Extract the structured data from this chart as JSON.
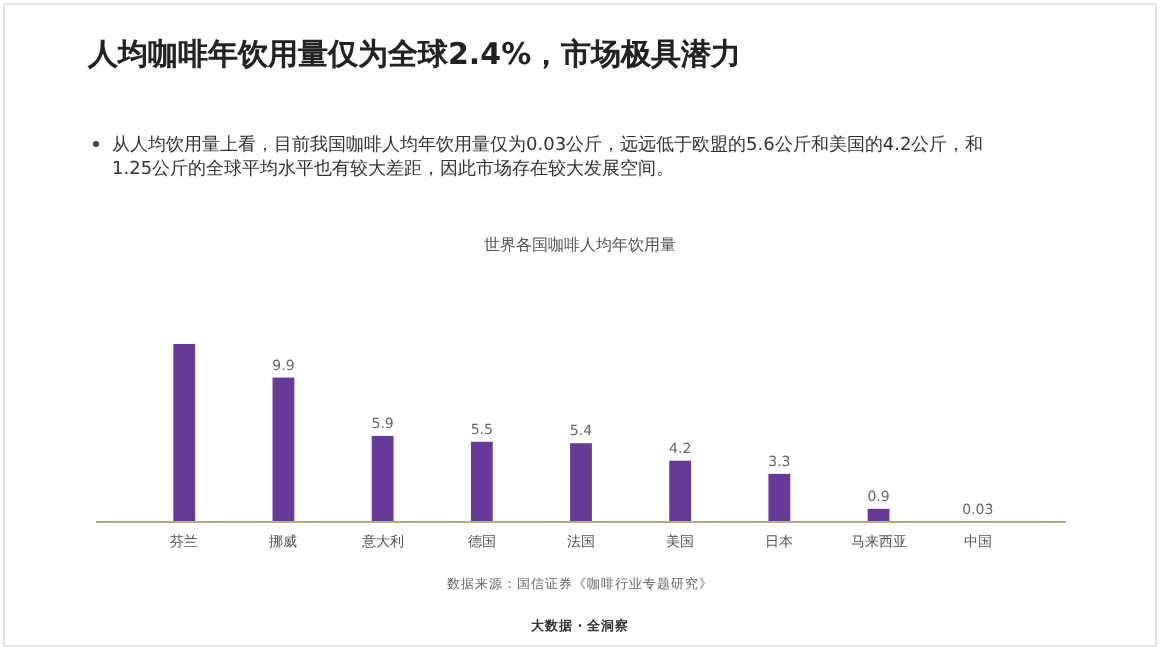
{
  "chart_data": {
    "type": "bar",
    "title": "人均咖啡年饮用量仅为全球2.4%，市场极具潜力",
    "subtitle": "从人均饮用量上看，目前我国咖啡人均年饮用量仅为0.03公斤，远远低于欧盟的5.6公斤和美国的4.2公斤，和1.25公斤的全球平均水平也有较大差距，因此市场存在较大发展空间。",
    "annotations": [
      "世界各国咖啡人均年饮用量",
      "数据来源：国信证券《咖啡行业专题研究》",
      "大数据 · 全洞察"
    ],
    "categories": [
      "芬兰",
      "挪威",
      "意大利",
      "德国",
      "法国",
      "美国",
      "日本",
      "马来西亚",
      "中国"
    ],
    "values": [
      12.2,
      9.9,
      5.9,
      5.5,
      5.4,
      4.2,
      3.3,
      0.9,
      0.03
    ],
    "value_labels": [
      null,
      "9.9",
      "5.9",
      "5.5",
      "5.4",
      "4.2",
      "3.3",
      "0.9",
      "0.03"
    ],
    "color": "#663a96",
    "tick_labels": "x",
    "grid": false,
    "legend": false
  }
}
